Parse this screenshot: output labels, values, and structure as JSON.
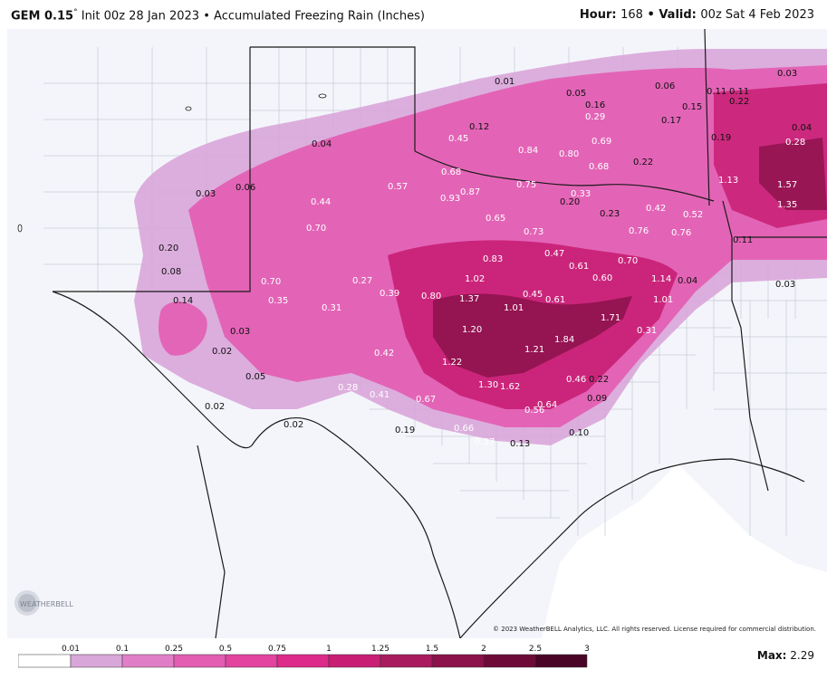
{
  "header": {
    "model": "GEM 0.15",
    "degree": "°",
    "init": "Init 00z 28 Jan 2023",
    "bullet": "•",
    "product": "Accumulated Freezing Rain (Inches)",
    "hour_label": "Hour:",
    "hour_value": "168",
    "valid_label": "Valid:",
    "valid_value": "00z Sat 4 Feb 2023"
  },
  "copyright": "© 2023 WeatherBELL Analytics, LLC. All rights reserved. License required for commercial distribution.",
  "logo_text": "WEATHERBELL",
  "legend": {
    "ticks": [
      "0.01",
      "0.1",
      "0.25",
      "0.5",
      "0.75",
      "1",
      "1.25",
      "1.5",
      "2",
      "2.5",
      "3"
    ],
    "colors": [
      "#ffffff",
      "#d9a6d9",
      "#e07fc7",
      "#e35db2",
      "#e2449f",
      "#dd2b8a",
      "#c81e74",
      "#a81b5e",
      "#8c124b",
      "#6e0a37",
      "#4a0426"
    ]
  },
  "max": {
    "label": "Max:",
    "value": "2.29"
  },
  "colors": {
    "land": "#f4f5fb",
    "water": "#ffffff",
    "borders": "#1a1a1a",
    "counties": "#c8cbd6",
    "light": "#d9a6d9",
    "medium": "#e35db2",
    "dark": "#c81e74",
    "darker": "#8c124b"
  },
  "values": [
    {
      "t": "0.01",
      "c": "d"
    },
    {
      "t": "0.05",
      "c": "d"
    },
    {
      "t": "0.06",
      "c": "d"
    },
    {
      "t": "0.11",
      "c": "d"
    },
    {
      "t": "0.11",
      "c": "d"
    },
    {
      "t": "0.03",
      "c": "d"
    },
    {
      "t": "0.16",
      "c": "d"
    },
    {
      "t": "0.15",
      "c": "d"
    },
    {
      "t": "0.22",
      "c": "d"
    },
    {
      "t": "0.29",
      "c": "w"
    },
    {
      "t": "0.17",
      "c": "d"
    },
    {
      "t": "0.12",
      "c": "d"
    },
    {
      "t": "0.04",
      "c": "d"
    },
    {
      "t": "0.45",
      "c": "w"
    },
    {
      "t": "0.19",
      "c": "d"
    },
    {
      "t": "0.28",
      "c": "w"
    },
    {
      "t": "0.84",
      "c": "w"
    },
    {
      "t": "0.69",
      "c": "w"
    },
    {
      "t": "0.80",
      "c": "w"
    },
    {
      "t": "0.04",
      "c": "d"
    },
    {
      "t": "0.68",
      "c": "w"
    },
    {
      "t": "0.68",
      "c": "w"
    },
    {
      "t": "0.22",
      "c": "d"
    },
    {
      "t": "1.13",
      "c": "w"
    },
    {
      "t": "1.57",
      "c": "w"
    },
    {
      "t": "0.57",
      "c": "w"
    },
    {
      "t": "0.75",
      "c": "w"
    },
    {
      "t": "0.87",
      "c": "w"
    },
    {
      "t": "0.33",
      "c": "w"
    },
    {
      "t": "0.03",
      "c": "d"
    },
    {
      "t": "0.06",
      "c": "d"
    },
    {
      "t": "0.93",
      "c": "w"
    },
    {
      "t": "0.20",
      "c": "d"
    },
    {
      "t": "0.42",
      "c": "w"
    },
    {
      "t": "1.35",
      "c": "w"
    },
    {
      "t": "0.44",
      "c": "w"
    },
    {
      "t": "0.23",
      "c": "d"
    },
    {
      "t": "0.52",
      "c": "w"
    },
    {
      "t": "0.65",
      "c": "w"
    },
    {
      "t": "0.76",
      "c": "w"
    },
    {
      "t": "0.73",
      "c": "w"
    },
    {
      "t": "0.70",
      "c": "w"
    },
    {
      "t": "0.76",
      "c": "w"
    },
    {
      "t": "0.11",
      "c": "d"
    },
    {
      "t": "0.20",
      "c": "d"
    },
    {
      "t": "0.47",
      "c": "w"
    },
    {
      "t": "0.83",
      "c": "w"
    },
    {
      "t": "0.61",
      "c": "w"
    },
    {
      "t": "0.70",
      "c": "w"
    },
    {
      "t": "0.08",
      "c": "d"
    },
    {
      "t": "0.60",
      "c": "w"
    },
    {
      "t": "1.14",
      "c": "w"
    },
    {
      "t": "0.04",
      "c": "d"
    },
    {
      "t": "1.02",
      "c": "w"
    },
    {
      "t": "0.03",
      "c": "d"
    },
    {
      "t": "0.70",
      "c": "w"
    },
    {
      "t": "0.27",
      "c": "w"
    },
    {
      "t": "0.39",
      "c": "w"
    },
    {
      "t": "0.80",
      "c": "w"
    },
    {
      "t": "0.45",
      "c": "w"
    },
    {
      "t": "0.14",
      "c": "d"
    },
    {
      "t": "0.35",
      "c": "w"
    },
    {
      "t": "1.37",
      "c": "w"
    },
    {
      "t": "0.61",
      "c": "w"
    },
    {
      "t": "1.01",
      "c": "w"
    },
    {
      "t": "0.31",
      "c": "w"
    },
    {
      "t": "1.01",
      "c": "w"
    },
    {
      "t": "1.71",
      "c": "w"
    },
    {
      "t": "0.03",
      "c": "d"
    },
    {
      "t": "1.20",
      "c": "w"
    },
    {
      "t": "0.31",
      "c": "w"
    },
    {
      "t": "0.02",
      "c": "d"
    },
    {
      "t": "1.84",
      "c": "w"
    },
    {
      "t": "0.42",
      "c": "w"
    },
    {
      "t": "1.21",
      "c": "w"
    },
    {
      "t": "1.22",
      "c": "w"
    },
    {
      "t": "0.05",
      "c": "d"
    },
    {
      "t": "0.46",
      "c": "w"
    },
    {
      "t": "0.22",
      "c": "d"
    },
    {
      "t": "0.28",
      "c": "w"
    },
    {
      "t": "1.30",
      "c": "w"
    },
    {
      "t": "1.62",
      "c": "w"
    },
    {
      "t": "0.41",
      "c": "w"
    },
    {
      "t": "0.67",
      "c": "w"
    },
    {
      "t": "0.09",
      "c": "d"
    },
    {
      "t": "0.64",
      "c": "w"
    },
    {
      "t": "0.02",
      "c": "d"
    },
    {
      "t": "0.56",
      "c": "w"
    },
    {
      "t": "0.02",
      "c": "d"
    },
    {
      "t": "0.19",
      "c": "d"
    },
    {
      "t": "0.66",
      "c": "w"
    },
    {
      "t": "0.10",
      "c": "d"
    },
    {
      "t": "0.37",
      "c": "w"
    },
    {
      "t": "0.13",
      "c": "d"
    }
  ]
}
